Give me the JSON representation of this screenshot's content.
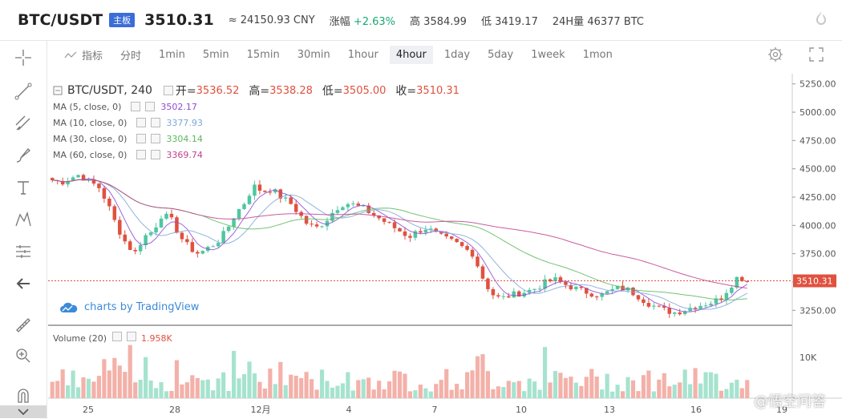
{
  "header": {
    "pair": "BTC/USDT",
    "badge": "主板",
    "price": "3510.31",
    "cny": "≈ 24150.93 CNY",
    "change_label": "涨幅",
    "change_value": "+2.63%",
    "high_label": "高",
    "high_value": "3584.99",
    "low_label": "低",
    "low_value": "3419.17",
    "vol_label": "24H量",
    "vol_value": "46377 BTC"
  },
  "toolbar": {
    "indicator_label": "指标",
    "intervals": [
      "分时",
      "1min",
      "5min",
      "15min",
      "30min",
      "1hour",
      "4hour",
      "1day",
      "5day",
      "1week",
      "1mon"
    ],
    "active_interval": "4hour"
  },
  "legend": {
    "title": "BTC/USDT, 240",
    "open_label": "开=",
    "open": "3536.52",
    "high_label": "高=",
    "high": "3538.28",
    "low_label": "低=",
    "low": "3505.00",
    "close_label": "收=",
    "close": "3510.31",
    "ma": [
      {
        "label": "MA (5, close, 0)",
        "value": "3502.17",
        "color": "#8e4bd1"
      },
      {
        "label": "MA (10, close, 0)",
        "value": "3377.93",
        "color": "#7da7d9"
      },
      {
        "label": "MA (30, close, 0)",
        "value": "3304.14",
        "color": "#5bb85b"
      },
      {
        "label": "MA (60, close, 0)",
        "value": "3369.74",
        "color": "#c0418f"
      }
    ]
  },
  "branding": "charts by TradingView",
  "volume": {
    "label": "Volume (20)",
    "value": "1.958K"
  },
  "watermark": "@悟空问答",
  "colors": {
    "up": "#4fc7a0",
    "down": "#e0513f",
    "vol_up": "#a6e3cf",
    "vol_down": "#f3b1a9",
    "price_line": "#e0513f"
  },
  "chart_data": {
    "type": "candlestick",
    "price_axis": {
      "ticks": [
        5250,
        5000,
        4750,
        4500,
        4250,
        4000,
        3750,
        3500,
        3250
      ],
      "labels": [
        "5250.00",
        "5000.00",
        "4750.00",
        "4500.00",
        "4250.00",
        "4000.00",
        "3750.00",
        "3500.00",
        "3250.00"
      ],
      "current": "3510.31"
    },
    "volume_axis": {
      "ticks": [
        "10K"
      ]
    },
    "x_ticks": [
      "25",
      "28",
      "12月",
      "4",
      "7",
      "10",
      "13",
      "16",
      "19"
    ],
    "close_path": [
      4400,
      4380,
      4420,
      4450,
      4380,
      4350,
      4200,
      4000,
      3850,
      3750,
      3900,
      3950,
      4100,
      4050,
      3900,
      3800,
      3750,
      3800,
      3850,
      3950,
      4100,
      4200,
      4350,
      4300,
      4320,
      4250,
      4200,
      4100,
      4000,
      3980,
      4050,
      4150,
      4200,
      4180,
      4150,
      4100,
      4050,
      4000,
      3950,
      3900,
      3950,
      3980,
      3920,
      3880,
      3850,
      3800,
      3750,
      3550,
      3400,
      3350,
      3380,
      3400,
      3420,
      3450,
      3500,
      3520,
      3480,
      3450,
      3420,
      3400,
      3380,
      3420,
      3450,
      3430,
      3380,
      3320,
      3280,
      3250,
      3230,
      3250,
      3280,
      3300,
      3320,
      3350,
      3450,
      3550,
      3510
    ]
  }
}
